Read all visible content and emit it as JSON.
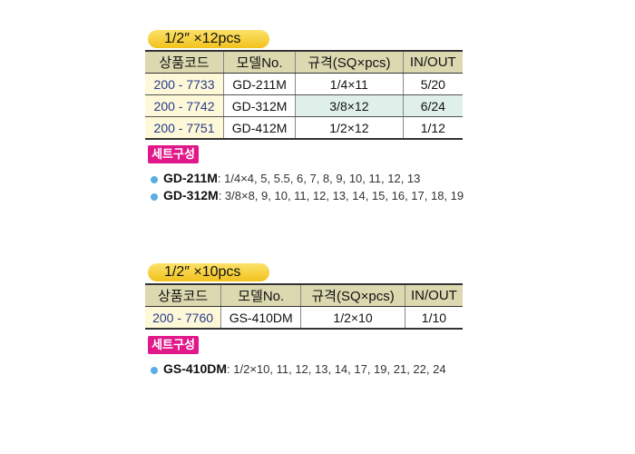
{
  "sections": [
    {
      "title": "1/2″ ×12pcs",
      "headers": [
        "상품코드",
        "모델No.",
        "규격(SQ×pcs)",
        "IN/OUT"
      ],
      "rows": [
        [
          "200 - 7733",
          "GD-211M",
          "1/4×11",
          "5/20"
        ],
        [
          "200 - 7742",
          "GD-312M",
          "3/8×12",
          "6/24"
        ],
        [
          "200 - 7751",
          "GD-412M",
          "1/2×12",
          "1/12"
        ]
      ],
      "set_label": "세트구성",
      "sets": [
        {
          "model": "GD-211M",
          "sizes": ": 1/4×4, 5, 5.5, 6, 7, 8, 9, 10, 11, 12, 13"
        },
        {
          "model": "GD-312M",
          "sizes": ": 3/8×8, 9, 10, 11, 12, 13, 14, 15, 16, 17, 18, 19"
        }
      ]
    },
    {
      "title": "1/2″ ×10pcs",
      "headers": [
        "상품코드",
        "모델No.",
        "규격(SQ×pcs)",
        "IN/OUT"
      ],
      "rows": [
        [
          "200 - 7760",
          "GS-410DM",
          "1/2×10",
          "1/10"
        ]
      ],
      "set_label": "세트구성",
      "sets": [
        {
          "model": "GS-410DM",
          "sizes": ": 1/2×10, 11, 12, 13, 14, 17, 19, 21, 22, 24"
        }
      ]
    }
  ],
  "colors": {
    "pill": "#f2c21c",
    "header": "#dcd9b0",
    "code_col": "#fdf8d8",
    "highlight": "#dff0ea",
    "badge": "#e0188a",
    "bullet": "#5aaee0"
  }
}
